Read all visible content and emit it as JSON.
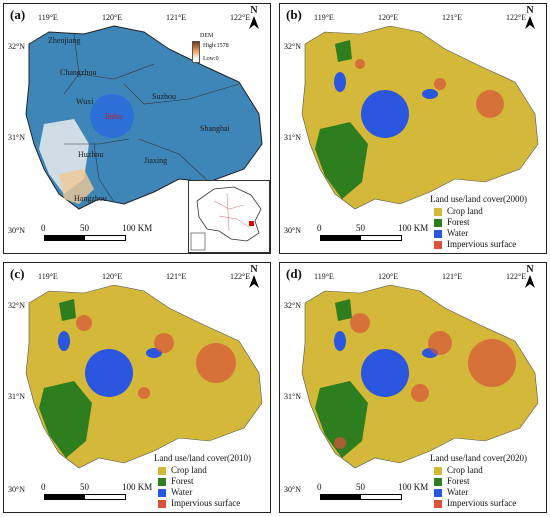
{
  "panels": [
    {
      "label": "(a)"
    },
    {
      "label": "(b)"
    },
    {
      "label": "(c)"
    },
    {
      "label": "(d)"
    }
  ],
  "axes": {
    "lon_ticks": [
      "119°E",
      "120°E",
      "121°E",
      "122°E"
    ],
    "lat_ticks": [
      "32°N",
      "31°N",
      "30°N"
    ]
  },
  "north": "N",
  "scale": {
    "zero": "0",
    "mid": "50",
    "end": "100 KM"
  },
  "dem_legend": {
    "title": "DEM",
    "high": "High:1578",
    "low": "Low:0"
  },
  "places": {
    "zhenjiang": "Zhenjiang",
    "changzhou": "Changzhou",
    "wuxi": "Wuxi",
    "taihu": "Taihu",
    "suzhou": "Suzhou",
    "shanghai": "Shanghai",
    "huzhou": "Huzhou",
    "jiaxing": "Jiaxing",
    "hangzhou": "Hangzhou"
  },
  "lulc_legends": [
    {
      "title": "Land use/land cover(2000)"
    },
    {
      "title": "Land use/land cover(2010)"
    },
    {
      "title": "Land use/land cover(2020)"
    }
  ],
  "classes": [
    {
      "name": "Crop land",
      "color": "#d4b83a"
    },
    {
      "name": "Forest",
      "color": "#2e7d1e"
    },
    {
      "name": "Water",
      "color": "#2a56e0"
    },
    {
      "name": "Impervious surface",
      "color": "#d9533a"
    }
  ],
  "colors": {
    "dem_base": "#3f86b8",
    "border": "#222222"
  }
}
